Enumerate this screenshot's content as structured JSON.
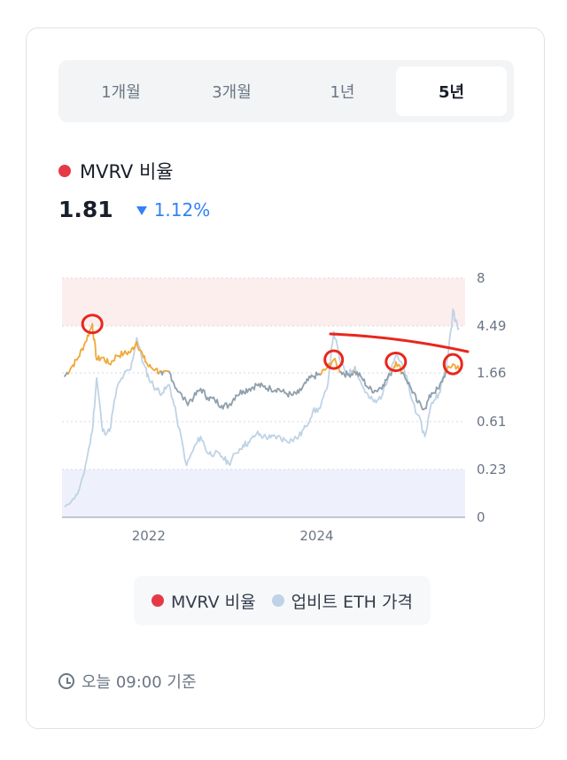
{
  "tabs": [
    {
      "label": "1개월",
      "active": false
    },
    {
      "label": "3개월",
      "active": false
    },
    {
      "label": "1년",
      "active": false
    },
    {
      "label": "5년",
      "active": true
    }
  ],
  "header": {
    "metric_label": "MVRV 비율",
    "metric_color": "#e63946",
    "value": "1.81",
    "change": "1.12%",
    "change_direction": "down",
    "change_color": "#3182f6"
  },
  "legend": {
    "mvrv_label": "MVRV 비율",
    "mvrv_color": "#e63946",
    "eth_label": "업비트 ETH 가격",
    "eth_color": "#bfd3e6"
  },
  "footer": {
    "timestamp": "오늘 09:00 기준",
    "icon": "clock-icon"
  },
  "chart_data": {
    "type": "line",
    "x_tick_labels": [
      "2022",
      "2024"
    ],
    "y_tick_labels": [
      "8",
      "4.49",
      "1.66",
      "0.61",
      "0.23",
      "0"
    ],
    "y_ticks": [
      8,
      4.49,
      1.66,
      0.61,
      0.23,
      0
    ],
    "y_scale": "log",
    "grid": "horizontal-dotted",
    "bands": [
      {
        "from": 4.49,
        "to": 8,
        "color": "#fdeeee"
      },
      {
        "from": 0,
        "to": 0.23,
        "color": "#eef1fb"
      }
    ],
    "series": [
      {
        "name": "MVRV 비율",
        "color_high": "#f0a93a",
        "color_low": "#8fa0ad",
        "points": [
          [
            "2021-01-01",
            1.55
          ],
          [
            "2021-02-01",
            1.9
          ],
          [
            "2021-03-01",
            2.3
          ],
          [
            "2021-04-01",
            3.2
          ],
          [
            "2021-05-01",
            4.6
          ],
          [
            "2021-05-20",
            2.2
          ],
          [
            "2021-06-15",
            2.3
          ],
          [
            "2021-07-15",
            2.0
          ],
          [
            "2021-08-15",
            2.4
          ],
          [
            "2021-09-15",
            2.5
          ],
          [
            "2021-10-15",
            2.6
          ],
          [
            "2021-11-10",
            3.2
          ],
          [
            "2021-12-10",
            2.3
          ],
          [
            "2022-01-01",
            1.9
          ],
          [
            "2022-02-01",
            1.8
          ],
          [
            "2022-03-01",
            1.6
          ],
          [
            "2022-04-01",
            1.7
          ],
          [
            "2022-05-01",
            1.2
          ],
          [
            "2022-06-15",
            0.9
          ],
          [
            "2022-07-15",
            1.0
          ],
          [
            "2022-08-15",
            1.2
          ],
          [
            "2022-09-15",
            1.0
          ],
          [
            "2022-10-15",
            0.95
          ],
          [
            "2022-11-15",
            0.85
          ],
          [
            "2022-12-15",
            0.85
          ],
          [
            "2023-01-15",
            1.05
          ],
          [
            "2023-02-15",
            1.15
          ],
          [
            "2023-03-15",
            1.2
          ],
          [
            "2023-04-15",
            1.3
          ],
          [
            "2023-05-15",
            1.25
          ],
          [
            "2023-06-15",
            1.2
          ],
          [
            "2023-07-15",
            1.2
          ],
          [
            "2023-08-15",
            1.1
          ],
          [
            "2023-09-15",
            1.05
          ],
          [
            "2023-10-15",
            1.1
          ],
          [
            "2023-11-15",
            1.35
          ],
          [
            "2023-12-15",
            1.55
          ],
          [
            "2024-01-15",
            1.6
          ],
          [
            "2024-02-15",
            1.85
          ],
          [
            "2024-03-15",
            2.2
          ],
          [
            "2024-04-15",
            1.7
          ],
          [
            "2024-05-15",
            1.6
          ],
          [
            "2024-06-15",
            1.7
          ],
          [
            "2024-07-15",
            1.5
          ],
          [
            "2024-08-15",
            1.2
          ],
          [
            "2024-09-15",
            1.15
          ],
          [
            "2024-10-15",
            1.3
          ],
          [
            "2024-11-15",
            1.6
          ],
          [
            "2024-12-10",
            2.1
          ],
          [
            "2025-01-15",
            1.6
          ],
          [
            "2025-02-15",
            1.2
          ],
          [
            "2025-03-15",
            0.9
          ],
          [
            "2025-04-15",
            0.8
          ],
          [
            "2025-05-15",
            1.1
          ],
          [
            "2025-06-15",
            1.2
          ],
          [
            "2025-07-15",
            1.7
          ],
          [
            "2025-08-15",
            2.0
          ],
          [
            "2025-09-10",
            1.81
          ]
        ]
      },
      {
        "name": "업비트 ETH 가격",
        "color": "#bfd3e6",
        "points": [
          [
            "2021-01-01",
            0.05
          ],
          [
            "2021-02-01",
            0.08
          ],
          [
            "2021-03-01",
            0.12
          ],
          [
            "2021-04-01",
            0.25
          ],
          [
            "2021-05-01",
            0.5
          ],
          [
            "2021-05-20",
            1.5
          ],
          [
            "2021-06-15",
            0.5
          ],
          [
            "2021-07-15",
            0.5
          ],
          [
            "2021-08-15",
            1.2
          ],
          [
            "2021-09-15",
            1.6
          ],
          [
            "2021-10-15",
            1.8
          ],
          [
            "2021-11-10",
            3.5
          ],
          [
            "2021-12-10",
            2.0
          ],
          [
            "2022-01-01",
            1.5
          ],
          [
            "2022-02-01",
            1.2
          ],
          [
            "2022-03-01",
            1.1
          ],
          [
            "2022-04-01",
            1.3
          ],
          [
            "2022-05-01",
            0.7
          ],
          [
            "2022-06-15",
            0.25
          ],
          [
            "2022-07-15",
            0.35
          ],
          [
            "2022-08-15",
            0.45
          ],
          [
            "2022-09-15",
            0.32
          ],
          [
            "2022-10-15",
            0.32
          ],
          [
            "2022-11-15",
            0.3
          ],
          [
            "2022-12-15",
            0.26
          ],
          [
            "2023-01-15",
            0.32
          ],
          [
            "2023-02-15",
            0.38
          ],
          [
            "2023-03-15",
            0.4
          ],
          [
            "2023-04-15",
            0.48
          ],
          [
            "2023-05-15",
            0.45
          ],
          [
            "2023-06-15",
            0.44
          ],
          [
            "2023-07-15",
            0.45
          ],
          [
            "2023-08-15",
            0.42
          ],
          [
            "2023-09-15",
            0.42
          ],
          [
            "2023-10-15",
            0.45
          ],
          [
            "2023-11-15",
            0.55
          ],
          [
            "2023-12-15",
            0.75
          ],
          [
            "2024-01-15",
            0.8
          ],
          [
            "2024-02-15",
            1.2
          ],
          [
            "2024-03-15",
            4.0
          ],
          [
            "2024-04-15",
            2.0
          ],
          [
            "2024-05-15",
            1.6
          ],
          [
            "2024-06-15",
            1.9
          ],
          [
            "2024-07-15",
            1.3
          ],
          [
            "2024-08-15",
            1.0
          ],
          [
            "2024-09-15",
            0.9
          ],
          [
            "2024-10-15",
            1.1
          ],
          [
            "2024-11-15",
            1.8
          ],
          [
            "2024-12-10",
            2.4
          ],
          [
            "2025-01-15",
            1.8
          ],
          [
            "2025-02-15",
            1.0
          ],
          [
            "2025-03-15",
            0.7
          ],
          [
            "2025-04-15",
            0.45
          ],
          [
            "2025-05-15",
            0.9
          ],
          [
            "2025-06-15",
            1.1
          ],
          [
            "2025-07-15",
            1.8
          ],
          [
            "2025-08-15",
            5.5
          ],
          [
            "2025-09-10",
            4.3
          ]
        ]
      }
    ]
  }
}
